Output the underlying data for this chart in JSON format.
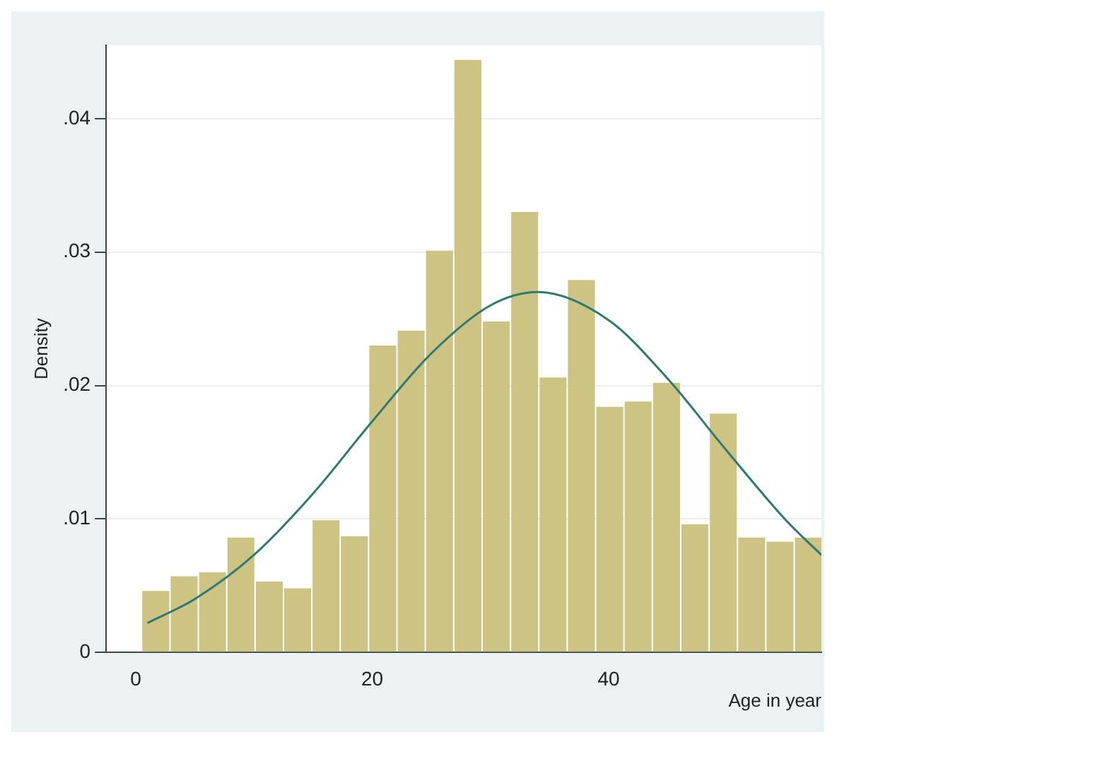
{
  "chart_data": {
    "type": "histogram",
    "xlabel": "Age in year",
    "ylabel": "Density",
    "xlim": [
      -2.5,
      58
    ],
    "xticks": [
      0,
      20,
      40
    ],
    "ylim": [
      0,
      0.0455
    ],
    "yticks": [
      0,
      {
        "value": 0.01,
        "label": ".01"
      },
      {
        "value": 0.02,
        "label": ".02"
      },
      {
        "value": 0.03,
        "label": ".03"
      },
      {
        "value": 0.04,
        "label": ".04"
      }
    ],
    "grid": "y",
    "legend": false,
    "series": [
      {
        "color": "#cdc484",
        "bins": [
          0.5,
          2.9,
          5.3,
          7.7,
          10.1,
          12.5,
          14.9,
          17.3,
          19.7,
          22.1,
          24.5,
          26.9,
          29.3,
          31.7,
          34.1,
          36.5,
          38.9,
          41.3,
          43.7,
          46.1,
          48.5,
          50.9,
          53.3,
          55.7,
          58.1
        ],
        "values": [
          0.0046,
          0.0057,
          0.006,
          0.0086,
          0.0053,
          0.0048,
          0.0099,
          0.0087,
          0.023,
          0.0241,
          0.0301,
          0.0444,
          0.0248,
          0.033,
          0.0206,
          0.0279,
          0.0184,
          0.0188,
          0.0202,
          0.0096,
          0.0179,
          0.0086,
          0.0083,
          0.0086
        ]
      },
      {
        "type": "line",
        "color": "#2e7a70",
        "x": [
          1,
          5,
          10,
          15,
          20,
          25,
          30,
          34,
          40,
          45,
          50,
          55,
          58
        ],
        "values": [
          0.0022,
          0.004,
          0.0073,
          0.0119,
          0.0173,
          0.0224,
          0.026,
          0.027,
          0.0249,
          0.0205,
          0.0151,
          0.0099,
          0.0073
        ]
      }
    ]
  }
}
